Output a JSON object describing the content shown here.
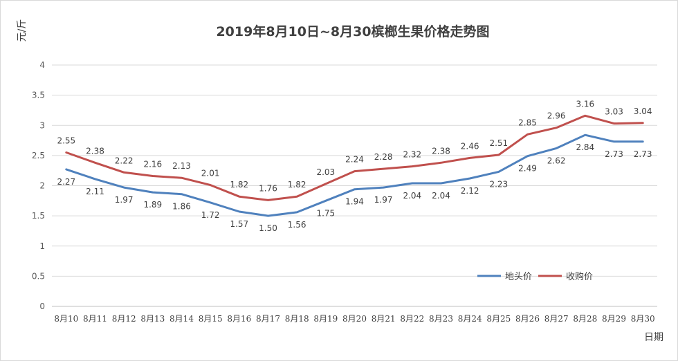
{
  "chart_data": {
    "type": "line",
    "title": "2019年8月10日~8月30槟榔生果价格走势图",
    "ylabel": "元/斤",
    "xlabel": "日期",
    "ylim": [
      0,
      4
    ],
    "yticks": [
      "0",
      "0.5",
      "1",
      "1.5",
      "2",
      "2.5",
      "3",
      "3.5",
      "4"
    ],
    "grid": true,
    "legend_position": "bottom-right",
    "categories": [
      "8月10",
      "8月11",
      "8月12",
      "8月13",
      "8月14",
      "8月15",
      "8月16",
      "8月17",
      "8月18",
      "8月19",
      "8月20",
      "8月21",
      "8月22",
      "8月23",
      "8月24",
      "8月25",
      "8月26",
      "8月27",
      "8月28",
      "8月29",
      "8月30"
    ],
    "series": [
      {
        "name": "地头价",
        "color": "#4F81BD",
        "values": [
          2.27,
          2.11,
          1.97,
          1.89,
          1.86,
          1.72,
          1.57,
          1.5,
          1.56,
          1.75,
          1.94,
          1.97,
          2.04,
          2.04,
          2.12,
          2.23,
          2.49,
          2.62,
          2.84,
          2.73,
          2.73
        ],
        "labels": [
          "2.27",
          "2.11",
          "1.97",
          "1.89",
          "1.86",
          "1.72",
          "1.57",
          "1.50",
          "1.56",
          "1.75",
          "1.94",
          "1.97",
          "2.04",
          "2.04",
          "2.12",
          "2.23",
          "2.49",
          "2.62",
          "2.84",
          "2.73",
          "2.73"
        ]
      },
      {
        "name": "收购价",
        "color": "#C0504D",
        "values": [
          2.55,
          2.38,
          2.22,
          2.16,
          2.13,
          2.01,
          1.82,
          1.76,
          1.82,
          2.03,
          2.24,
          2.28,
          2.32,
          2.38,
          2.46,
          2.51,
          2.85,
          2.96,
          3.16,
          3.03,
          3.04
        ],
        "labels": [
          "2.55",
          "2.38",
          "2.22",
          "2.16",
          "2.13",
          "2.01",
          "1.82",
          "1.76",
          "1.82",
          "2.03",
          "2.24",
          "2.28",
          "2.32",
          "2.38",
          "2.46",
          "2.51",
          "2.85",
          "2.96",
          "3.16",
          "3.03",
          "3.04"
        ]
      }
    ]
  }
}
